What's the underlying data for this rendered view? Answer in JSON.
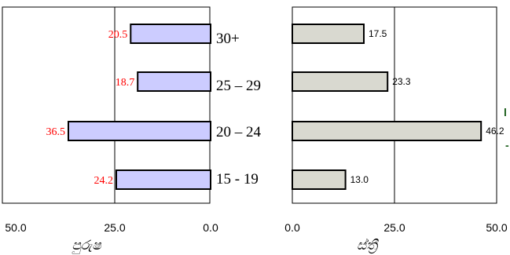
{
  "chart_data": [
    {
      "type": "bar",
      "orientation": "horizontal",
      "xlabel": "පුරුෂ",
      "categories": [
        "30+",
        "25 – 29",
        "20 – 24",
        "15 - 19"
      ],
      "values": [
        20.5,
        18.7,
        36.5,
        24.2
      ],
      "value_labels": [
        "20.5",
        "18.7",
        "36.5",
        "24.2"
      ],
      "xlim": [
        50,
        0
      ],
      "x_ticks": [
        "50.0",
        "25.0",
        "0.0"
      ],
      "grid": "vertical line at 25",
      "bar_color": "#ccccff",
      "label_color": "#ff0000"
    },
    {
      "type": "bar",
      "orientation": "horizontal",
      "xlabel": "ස්ත්‍රී",
      "categories": [
        "30+",
        "25 – 29",
        "20 – 24",
        "15 - 19"
      ],
      "values": [
        17.5,
        23.3,
        46.2,
        13.0
      ],
      "value_labels": [
        "17.5",
        "23.3",
        "46.2",
        "13.0"
      ],
      "xlim": [
        0,
        50
      ],
      "x_ticks": [
        "0.0",
        "25.0",
        "50.0"
      ],
      "grid": "vertical line at 25",
      "bar_color": "#d9d9d0",
      "label_color": "#000000"
    }
  ],
  "stray_marks": [
    "l",
    "-"
  ]
}
